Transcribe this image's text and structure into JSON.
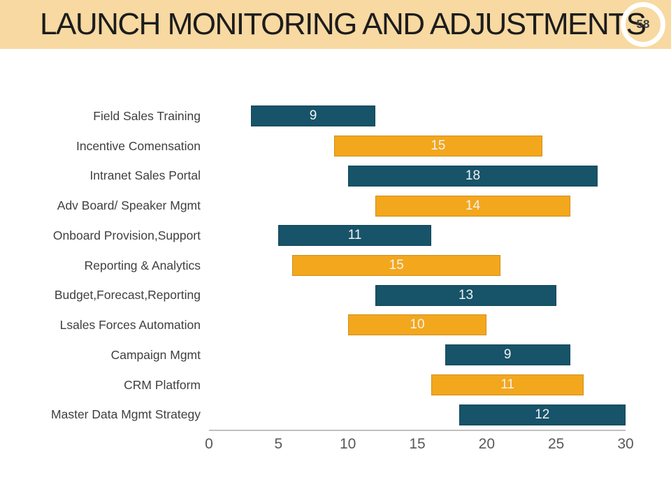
{
  "header": {
    "title": "LAUNCH MONITORING AND ADJUSTMENTS",
    "page_number": "58"
  },
  "colors": {
    "header_bg": "#F7D9A1",
    "teal": "#175369",
    "orange": "#F3A71D",
    "axis_line": "#C0C0C0",
    "tick_text": "#595959",
    "category_text": "#3F3F3F",
    "value_text": "#F2F2F2",
    "title_text": "#1C1C1C",
    "badge_ring": "#FFFFFF",
    "badge_text": "#3D3D3D"
  },
  "chart_data": {
    "type": "bar",
    "subtype": "horizontal-floating-gantt",
    "title": "",
    "xlabel": "",
    "ylabel": "",
    "categories": [
      "Field Sales Training",
      "Incentive Comensation",
      "Intranet Sales Portal",
      "Adv Board/ Speaker Mgmt",
      "Onboard Provision,Support",
      "Reporting & Analytics",
      "Budget,Forecast,Reporting",
      "Lsales Forces Automation",
      "Campaign Mgmt",
      "CRM Platform",
      "Master Data Mgmt Strategy"
    ],
    "bars": [
      {
        "start": 3,
        "duration": 9,
        "end": 12,
        "color": "teal"
      },
      {
        "start": 9,
        "duration": 15,
        "end": 24,
        "color": "orange"
      },
      {
        "start": 10,
        "duration": 18,
        "end": 28,
        "color": "teal"
      },
      {
        "start": 12,
        "duration": 14,
        "end": 26,
        "color": "orange"
      },
      {
        "start": 5,
        "duration": 11,
        "end": 16,
        "color": "teal"
      },
      {
        "start": 6,
        "duration": 15,
        "end": 21,
        "color": "orange"
      },
      {
        "start": 12,
        "duration": 13,
        "end": 25,
        "color": "teal"
      },
      {
        "start": 10,
        "duration": 10,
        "end": 20,
        "color": "orange"
      },
      {
        "start": 17,
        "duration": 9,
        "end": 26,
        "color": "teal"
      },
      {
        "start": 16,
        "duration": 11,
        "end": 27,
        "color": "orange"
      },
      {
        "start": 18,
        "duration": 12,
        "end": 30,
        "color": "teal"
      }
    ],
    "value_labels": [
      9,
      15,
      18,
      14,
      11,
      15,
      13,
      10,
      9,
      11,
      12
    ],
    "value_label_position": "inside-center",
    "xlim": [
      0,
      30
    ],
    "xticks": [
      0,
      5,
      10,
      15,
      20,
      25,
      30
    ],
    "grid": false,
    "legend": false
  }
}
